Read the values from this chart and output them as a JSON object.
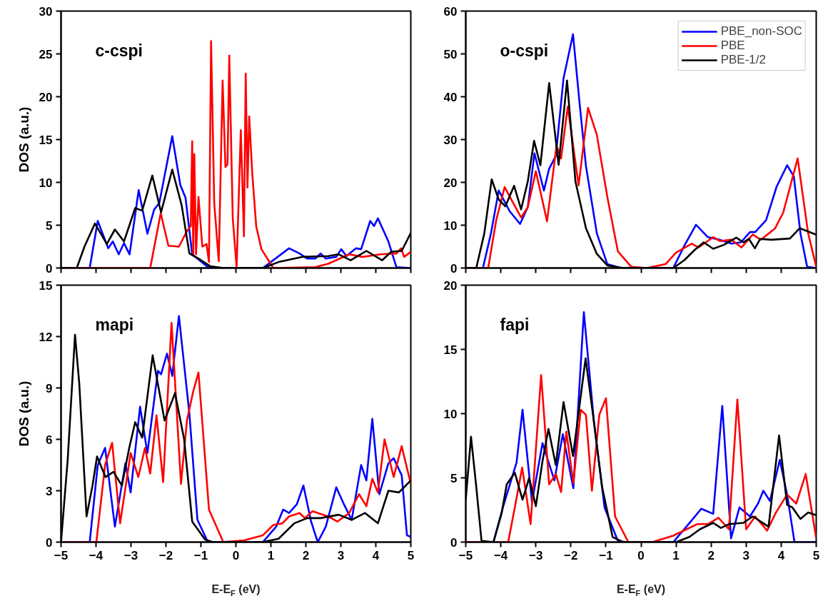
{
  "chart_data": [
    {
      "type": "line",
      "title": "c-cspi",
      "ylabel": "DOS (a.u.)",
      "xlim": [
        -5,
        5
      ],
      "xticks": [
        -5,
        -4,
        -3,
        -2,
        -1,
        0,
        1,
        2,
        3,
        4,
        5
      ],
      "ylim": [
        0,
        30
      ],
      "yticks": [
        0,
        5,
        10,
        15,
        20,
        25,
        30
      ],
      "tick_labels": "y",
      "series": [
        {
          "color": "#0000ff",
          "x": [
            -5,
            -4.18,
            -3.95,
            -3.65,
            -3.52,
            -3.35,
            -3.2,
            -3.04,
            -2.78,
            -2.53,
            -2.34,
            -2.19,
            -1.82,
            -1.59,
            -1.44,
            -1.25,
            -0.8,
            -0.58,
            0.77,
            1.52,
            1.82,
            2.04,
            2.27,
            2.42,
            2.57,
            2.87,
            3.01,
            3.16,
            3.43,
            3.58,
            3.84,
            3.95,
            4.06,
            4.36,
            4.59,
            5
          ],
          "values": [
            0,
            0,
            5.5,
            2.3,
            3.1,
            1.6,
            2.9,
            1.6,
            9.1,
            4.0,
            6.8,
            7.6,
            15.4,
            9.7,
            8.2,
            1.6,
            0.1,
            0,
            0,
            2.3,
            1.7,
            1.1,
            1.1,
            1.7,
            1.1,
            1.3,
            2.2,
            1.4,
            2.3,
            2.2,
            5.5,
            4.9,
            5.8,
            3.1,
            0.1,
            0
          ]
        },
        {
          "color": "#ff0000",
          "x": [
            -5,
            -2.45,
            -2.15,
            -1.93,
            -1.63,
            -1.4,
            -1.29,
            -1.25,
            -1.22,
            -1.19,
            -1.14,
            -1.07,
            -0.96,
            -0.84,
            -0.77,
            -0.71,
            -0.62,
            -0.49,
            -0.38,
            -0.3,
            -0.24,
            -0.19,
            -0.09,
            0.02,
            0.14,
            0.23,
            0.28,
            0.33,
            0.38,
            0.47,
            0.58,
            0.73,
            1.07,
            2.27,
            2.64,
            3.24,
            3.61,
            4.14,
            4.59,
            4.72,
            4.81,
            5
          ],
          "values": [
            0,
            0,
            6.4,
            2.6,
            2.5,
            4.3,
            4.9,
            14.8,
            1.6,
            13.3,
            1.6,
            8.3,
            2.5,
            2.8,
            0.7,
            26.5,
            7.6,
            0.8,
            21.9,
            11.8,
            12.1,
            24.8,
            5.8,
            0.1,
            16.1,
            3.7,
            22.7,
            9.4,
            17.7,
            10.9,
            4.9,
            2.2,
            0,
            0.1,
            0.5,
            1.6,
            1.3,
            1.6,
            1.7,
            2.3,
            1.3,
            1.9
          ]
        },
        {
          "color": "#000000",
          "x": [
            -5,
            -4.55,
            -4.33,
            -4.03,
            -3.69,
            -3.46,
            -3.2,
            -2.88,
            -2.68,
            -2.39,
            -2.14,
            -1.82,
            -1.55,
            -1.33,
            -1.03,
            -0.73,
            -0.36,
            0.77,
            1.22,
            1.89,
            2.64,
            2.94,
            3.28,
            3.73,
            4.18,
            4.44,
            4.74,
            5
          ],
          "values": [
            0,
            0,
            2.5,
            5.2,
            2.8,
            4.5,
            3.1,
            7.0,
            6.7,
            10.8,
            6.5,
            11.5,
            7.3,
            1.7,
            1.0,
            0.2,
            0,
            0,
            0.7,
            1.3,
            1.4,
            1.6,
            0.9,
            2.0,
            0.9,
            1.9,
            2.0,
            4.1
          ]
        }
      ]
    },
    {
      "type": "line",
      "title": "o-cspi",
      "xlim": [
        -5,
        5
      ],
      "xticks": [
        -5,
        -4,
        -3,
        -2,
        -1,
        0,
        1,
        2,
        3,
        4,
        5
      ],
      "ylim": [
        0,
        60
      ],
      "yticks": [
        0,
        10,
        20,
        30,
        40,
        50,
        60
      ],
      "tick_labels": "y",
      "legend": "top right",
      "series": [
        {
          "name": "PBE_non-SOC",
          "color": "#0000ff",
          "x": [
            -5,
            -4.51,
            -4.28,
            -4.06,
            -3.75,
            -3.45,
            -3.23,
            -3.04,
            -2.77,
            -2.62,
            -2.43,
            -2.21,
            -1.94,
            -1.75,
            -1.57,
            -1.26,
            -0.96,
            -0.58,
            0.92,
            1.23,
            1.57,
            1.91,
            2.25,
            2.58,
            2.85,
            3.11,
            3.26,
            3.57,
            3.87,
            4.17,
            4.36,
            4.55,
            4.74,
            5
          ],
          "values": [
            0,
            0,
            8.1,
            18.1,
            13.3,
            10.3,
            14.2,
            26.8,
            18.1,
            23.2,
            26.2,
            44.3,
            54.6,
            38.3,
            23.8,
            8.1,
            0.9,
            0,
            0,
            5.1,
            10.1,
            7.2,
            6.6,
            5.7,
            6.0,
            8.4,
            8.4,
            11.2,
            19.0,
            24.0,
            21.4,
            8.1,
            0.3,
            0
          ]
        },
        {
          "name": "PBE",
          "color": "#ff0000",
          "x": [
            -5,
            -4.36,
            -4.13,
            -3.89,
            -3.68,
            -3.42,
            -3.23,
            -3.0,
            -2.68,
            -2.41,
            -2.28,
            -2.09,
            -1.78,
            -1.51,
            -1.26,
            -0.96,
            -0.66,
            -0.28,
            0.17,
            0.7,
            1.0,
            1.45,
            1.64,
            2.06,
            2.25,
            2.58,
            2.87,
            3.19,
            3.42,
            3.83,
            4.06,
            4.47,
            4.77,
            5
          ],
          "values": [
            0,
            0,
            11.2,
            18.9,
            15.7,
            11.8,
            14.2,
            22.6,
            10.9,
            28.6,
            25.6,
            37.7,
            19.3,
            37.4,
            31.1,
            16.6,
            3.9,
            0.3,
            0,
            0.9,
            3.6,
            5.7,
            4.8,
            7.2,
            6.3,
            6.6,
            4.8,
            7.8,
            6.6,
            9.3,
            13.0,
            25.6,
            8.1,
            0.3
          ]
        },
        {
          "name": "PBE-1/2",
          "color": "#000000",
          "x": [
            -5,
            -4.7,
            -4.47,
            -4.26,
            -4.06,
            -3.87,
            -3.62,
            -3.42,
            -3.23,
            -3.05,
            -2.87,
            -2.62,
            -2.35,
            -2.11,
            -1.87,
            -1.57,
            -1.26,
            -0.96,
            -0.51,
            0.92,
            1.23,
            1.53,
            1.79,
            2.06,
            2.36,
            2.72,
            2.92,
            3.08,
            3.25,
            3.4,
            3.72,
            4.25,
            4.53,
            5
          ],
          "values": [
            0,
            0,
            8.1,
            20.7,
            16.0,
            14.4,
            19.2,
            13.7,
            20.2,
            29.7,
            24.0,
            43.2,
            24.1,
            43.8,
            20.2,
            9.3,
            3.3,
            0.6,
            0,
            0,
            1.8,
            4.2,
            6.0,
            4.5,
            5.4,
            7.1,
            6.0,
            6.8,
            4.6,
            6.8,
            6.6,
            6.9,
            9.3,
            7.8
          ]
        }
      ]
    },
    {
      "type": "line",
      "title": "mapi",
      "xlabel": "E-E$_{F}$ (eV)",
      "ylabel": "DOS (a.u.)",
      "xlim": [
        -5,
        5
      ],
      "xticks": [
        -5,
        -4,
        -3,
        -2,
        -1,
        0,
        1,
        2,
        3,
        4,
        5
      ],
      "ylim": [
        0,
        15
      ],
      "yticks": [
        0,
        3,
        6,
        9,
        12,
        15
      ],
      "series": [
        {
          "color": "#0000ff",
          "x": [
            -5,
            -4.18,
            -3.95,
            -3.74,
            -3.46,
            -3.16,
            -3.01,
            -2.74,
            -2.53,
            -2.23,
            -2.14,
            -1.97,
            -1.82,
            -1.63,
            -1.33,
            -1.1,
            -0.8,
            0.77,
            1.15,
            1.35,
            1.52,
            1.74,
            1.93,
            2.15,
            2.34,
            2.57,
            2.87,
            3.09,
            3.31,
            3.58,
            3.73,
            3.9,
            4.1,
            4.36,
            4.51,
            4.74,
            4.89,
            5
          ],
          "values": [
            0,
            0,
            4.5,
            5.5,
            0.9,
            4.6,
            2.9,
            7.9,
            5.2,
            10.0,
            9.8,
            11.0,
            9.7,
            13.2,
            7.5,
            1.3,
            0,
            0,
            0.9,
            1.9,
            1.7,
            2.2,
            3.3,
            1.2,
            0,
            0.9,
            3.2,
            2.2,
            1.3,
            4.5,
            3.6,
            7.2,
            2.8,
            4.6,
            4.9,
            3.9,
            0.4,
            0.3
          ]
        },
        {
          "color": "#ff0000",
          "x": [
            -5,
            -3.99,
            -3.74,
            -3.54,
            -3.31,
            -3.01,
            -2.79,
            -2.6,
            -2.45,
            -2.27,
            -2.08,
            -1.84,
            -1.57,
            -1.4,
            -1.22,
            -1.07,
            -0.77,
            -0.36,
            0.24,
            0.77,
            1.07,
            1.33,
            1.52,
            1.82,
            1.97,
            2.19,
            2.64,
            2.9,
            3.24,
            3.52,
            3.73,
            3.9,
            4.06,
            4.25,
            4.51,
            4.74,
            5
          ],
          "values": [
            0,
            0,
            4.5,
            5.8,
            1.1,
            5.2,
            3.8,
            5.5,
            4.0,
            7.4,
            3.5,
            12.8,
            3.4,
            7.1,
            8.8,
            9.9,
            1.9,
            0,
            0.1,
            0.4,
            1.0,
            1.1,
            1.5,
            1.7,
            1.4,
            1.8,
            1.5,
            1.2,
            1.7,
            2.8,
            2.1,
            3.7,
            2.9,
            6.0,
            3.8,
            5.6,
            3.4
          ]
        },
        {
          "color": "#000000",
          "x": [
            -5,
            -4.81,
            -4.6,
            -4.48,
            -4.27,
            -4.1,
            -3.97,
            -3.73,
            -3.5,
            -3.26,
            -3.05,
            -2.88,
            -2.68,
            -2.38,
            -2.04,
            -1.74,
            -1.48,
            -1.25,
            -0.88,
            -0.66,
            0.77,
            1.22,
            1.67,
            2.04,
            2.42,
            2.94,
            3.31,
            3.69,
            4.06,
            4.36,
            4.66,
            5
          ],
          "values": [
            0,
            4.8,
            12.1,
            9.3,
            1.5,
            3.3,
            5.0,
            3.8,
            4.1,
            3.3,
            5.5,
            7.0,
            6.1,
            10.9,
            7.1,
            8.7,
            6.0,
            1.2,
            0.15,
            0,
            0,
            0.2,
            1.1,
            1.4,
            1.4,
            1.6,
            1.3,
            1.7,
            1.1,
            3.0,
            2.9,
            3.6
          ]
        }
      ]
    },
    {
      "type": "line",
      "title": "fapi",
      "xlabel": "E-E$_{F}$ (eV)",
      "xlim": [
        -5,
        5
      ],
      "xticks": [
        -5,
        -4,
        -3,
        -2,
        -1,
        0,
        1,
        2,
        3,
        4,
        5
      ],
      "ylim": [
        0,
        20
      ],
      "yticks": [
        0,
        5,
        10,
        15,
        20
      ],
      "series": [
        {
          "color": "#0000ff",
          "x": [
            -5,
            -4.21,
            -3.94,
            -3.55,
            -3.38,
            -3.11,
            -2.81,
            -2.47,
            -2.23,
            -1.93,
            -1.63,
            -1.34,
            -1.04,
            -0.66,
            -0.43,
            0.92,
            1.45,
            1.72,
            2.06,
            2.32,
            2.57,
            2.81,
            3.11,
            3.34,
            3.49,
            3.68,
            3.96,
            4.17,
            4.38,
            5
          ],
          "values": [
            0,
            0,
            2.7,
            6.2,
            10.3,
            3.1,
            7.7,
            4.8,
            8.4,
            4.2,
            17.9,
            9.3,
            2.7,
            0.1,
            0,
            0,
            1.7,
            2.6,
            2.2,
            10.6,
            0.3,
            2.7,
            2.0,
            3.0,
            4.0,
            3.2,
            6.4,
            3.7,
            0,
            0
          ]
        },
        {
          "color": "#ff0000",
          "x": [
            -5,
            -3.79,
            -3.6,
            -3.39,
            -3.15,
            -2.85,
            -2.62,
            -2.43,
            -2.28,
            -2.13,
            -1.93,
            -1.72,
            -1.57,
            -1.4,
            -1.19,
            -1.0,
            -0.74,
            -0.36,
            0.32,
            0.92,
            1.3,
            1.6,
            1.91,
            2.21,
            2.51,
            2.75,
            3.0,
            3.26,
            3.6,
            3.85,
            4.17,
            4.43,
            4.7,
            5
          ],
          "values": [
            0,
            0,
            2.7,
            5.8,
            1.4,
            13.0,
            4.5,
            5.3,
            3.9,
            8.6,
            4.6,
            10.3,
            9.9,
            4.0,
            9.9,
            11.2,
            2.0,
            0,
            0,
            0.5,
            1.0,
            1.4,
            1.4,
            1.9,
            1.0,
            11.1,
            1.0,
            2.0,
            0.9,
            2.3,
            3.7,
            3.0,
            5.3,
            0.3
          ]
        },
        {
          "color": "#000000",
          "x": [
            -5,
            -4.85,
            -4.7,
            -4.55,
            -4.21,
            -3.98,
            -3.83,
            -3.6,
            -3.38,
            -3.19,
            -3.0,
            -2.81,
            -2.64,
            -2.43,
            -2.21,
            -1.94,
            -1.58,
            -1.34,
            -1.11,
            -0.81,
            -0.51,
            1.0,
            1.38,
            1.68,
            2.06,
            2.28,
            2.51,
            2.92,
            3.19,
            3.64,
            3.94,
            4.17,
            4.32,
            4.55,
            4.77,
            5
          ],
          "values": [
            3.3,
            8.2,
            4.3,
            0.1,
            0,
            2.2,
            4.5,
            5.4,
            3.3,
            5.0,
            2.8,
            6.3,
            8.8,
            6.0,
            10.9,
            6.7,
            14.3,
            9.3,
            4.3,
            0.4,
            0,
            0,
            0.4,
            1.0,
            1.5,
            1.1,
            1.4,
            1.5,
            2.0,
            1.2,
            8.3,
            2.9,
            2.7,
            1.8,
            2.3,
            2.1
          ]
        }
      ]
    }
  ]
}
